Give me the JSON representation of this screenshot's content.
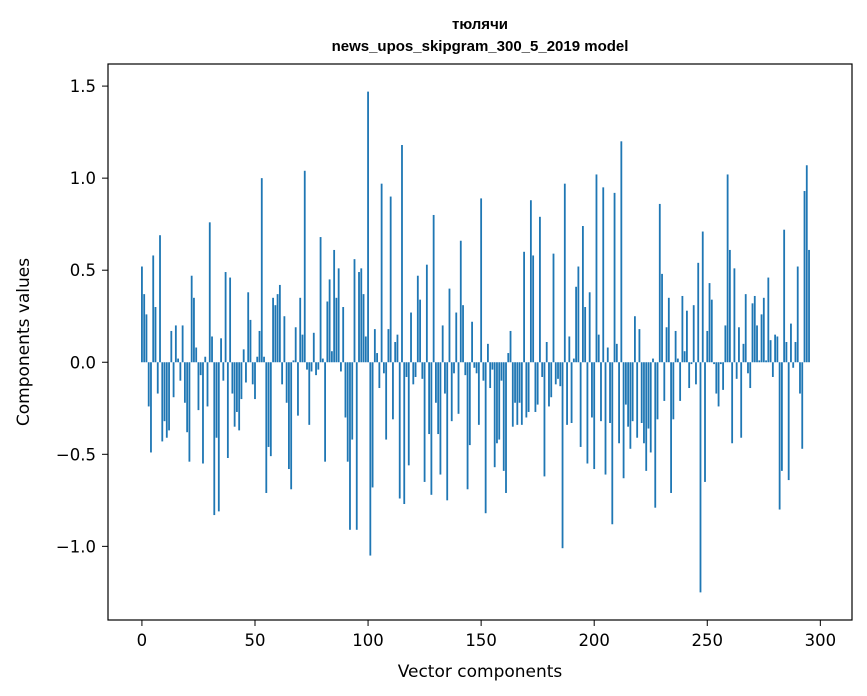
{
  "chart_data": {
    "type": "bar",
    "title": "тюлячи",
    "subtitle": "news_upos_skipgram_300_5_2019 model",
    "xlabel": "Vector components",
    "ylabel": "Components values",
    "xlim": [
      -15,
      314
    ],
    "ylim": [
      -1.4,
      1.62
    ],
    "xticks": [
      0,
      50,
      100,
      150,
      200,
      250,
      300
    ],
    "xtick_labels": [
      "0",
      "50",
      "100",
      "150",
      "200",
      "250",
      "300"
    ],
    "yticks": [
      -1.0,
      -0.5,
      0.0,
      0.5,
      1.0,
      1.5
    ],
    "ytick_labels": [
      "−1.0",
      "−0.5",
      "0.0",
      "0.5",
      "1.0",
      "1.5"
    ],
    "bar_color": "#1f77b4",
    "grid": false,
    "series": [
      {
        "values": [
          0.52,
          0.37,
          0.26,
          -0.24,
          -0.49,
          0.58,
          0.3,
          -0.17,
          0.69,
          -0.43,
          -0.32,
          -0.41,
          -0.37,
          0.17,
          -0.19,
          0.2,
          0.02,
          -0.1,
          0.2,
          -0.22,
          -0.38,
          -0.54,
          0.47,
          0.35,
          0.08,
          -0.26,
          -0.07,
          -0.55,
          0.03,
          -0.24,
          0.76,
          0.14,
          -0.83,
          -0.41,
          -0.81,
          0.13,
          -0.1,
          0.49,
          -0.52,
          0.46,
          -0.17,
          -0.35,
          -0.27,
          -0.37,
          -0.2,
          0.07,
          -0.11,
          0.38,
          0.23,
          -0.12,
          -0.2,
          0.03,
          0.17,
          1.0,
          0.03,
          -0.71,
          -0.46,
          -0.51,
          0.35,
          0.31,
          0.37,
          0.42,
          -0.12,
          0.25,
          -0.22,
          -0.58,
          -0.69,
          0.01,
          0.19,
          -0.29,
          0.35,
          0.15,
          1.04,
          -0.04,
          -0.34,
          -0.05,
          0.16,
          -0.07,
          -0.04,
          0.68,
          0.02,
          -0.54,
          0.33,
          0.45,
          0.06,
          0.61,
          0.35,
          0.51,
          -0.05,
          0.3,
          -0.3,
          -0.54,
          -0.91,
          -0.42,
          0.56,
          -0.91,
          0.49,
          0.51,
          0.37,
          0.14,
          1.47,
          -1.05,
          -0.68,
          0.18,
          0.05,
          -0.14,
          0.97,
          -0.06,
          -0.42,
          0.18,
          0.9,
          -0.31,
          0.11,
          0.15,
          -0.74,
          1.18,
          -0.77,
          -0.08,
          -0.56,
          0.27,
          -0.12,
          -0.08,
          0.47,
          0.34,
          -0.09,
          -0.65,
          0.53,
          -0.39,
          -0.72,
          0.8,
          -0.22,
          -0.39,
          -0.61,
          0.2,
          -0.17,
          -0.75,
          0.4,
          -0.32,
          -0.06,
          0.27,
          -0.28,
          0.66,
          0.31,
          -0.07,
          -0.69,
          -0.45,
          0.22,
          -0.03,
          -0.06,
          -0.34,
          0.89,
          -0.1,
          -0.82,
          0.1,
          -0.14,
          -0.04,
          -0.57,
          -0.44,
          -0.42,
          -0.1,
          -0.59,
          -0.71,
          0.05,
          0.17,
          -0.35,
          -0.22,
          -0.34,
          -0.22,
          -0.34,
          0.6,
          -0.3,
          -0.27,
          0.88,
          0.58,
          -0.27,
          -0.23,
          0.79,
          -0.08,
          -0.62,
          0.11,
          -0.24,
          -0.19,
          0.59,
          -0.12,
          -0.09,
          -0.13,
          -1.01,
          0.97,
          -0.34,
          0.14,
          -0.33,
          0.02,
          0.41,
          0.52,
          -0.46,
          0.74,
          0.3,
          -0.55,
          0.38,
          -0.3,
          -0.58,
          1.02,
          0.15,
          -0.32,
          0.95,
          -0.61,
          0.08,
          -0.33,
          -0.88,
          0.92,
          0.1,
          -0.44,
          1.2,
          -0.63,
          -0.23,
          -0.35,
          -0.47,
          -0.32,
          0.25,
          -0.41,
          0.18,
          -0.33,
          -0.44,
          -0.59,
          -0.36,
          -0.49,
          0.02,
          -0.79,
          -0.31,
          0.86,
          0.48,
          -0.21,
          0.19,
          0.35,
          -0.71,
          -0.31,
          0.17,
          0.02,
          -0.21,
          0.36,
          0.06,
          0.28,
          -0.14,
          -0.01,
          0.31,
          -0.12,
          0.54,
          -1.25,
          0.71,
          -0.65,
          0.17,
          0.43,
          0.34,
          -0.01,
          -0.17,
          -0.24,
          -0.01,
          -0.15,
          0.2,
          1.02,
          0.61,
          -0.44,
          0.51,
          -0.09,
          0.19,
          -0.41,
          0.1,
          0.37,
          -0.06,
          -0.14,
          0.32,
          0.36,
          0.2,
          0.01,
          0.26,
          0.35,
          0.01,
          0.46,
          0.12,
          -0.08,
          0.15,
          0.14,
          -0.8,
          -0.59,
          0.72,
          0.11,
          -0.64,
          0.21,
          -0.03,
          0.11,
          0.52,
          -0.17,
          -0.47,
          0.93,
          1.07,
          0.61
        ]
      }
    ]
  }
}
